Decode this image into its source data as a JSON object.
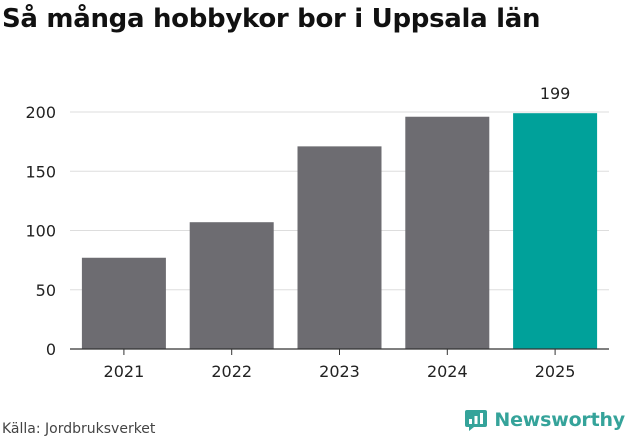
{
  "title": "Så många hobbykor bor i Uppsala län",
  "source": "Källa: Jordbruksverket",
  "brand": {
    "name": "Newsworthy",
    "icon": "newsworthy-logo-icon"
  },
  "colors": {
    "bar": "#6d6c71",
    "highlight": "#00a19a",
    "grid": "#dddddd",
    "axis": "#333333",
    "brand": "#35a39a"
  },
  "chart_data": {
    "type": "bar",
    "title": "Så många hobbykor bor i Uppsala län",
    "categories": [
      "2021",
      "2022",
      "2023",
      "2024",
      "2025"
    ],
    "values": [
      77,
      107,
      171,
      196,
      199
    ],
    "highlight_index": 4,
    "data_labels": [
      {
        "index": 4,
        "text": "199"
      }
    ],
    "xlabel": "",
    "ylabel": "",
    "ylim": [
      0,
      200
    ],
    "yticks": [
      0,
      50,
      100,
      150,
      200
    ],
    "grid": true,
    "legend": "none"
  }
}
